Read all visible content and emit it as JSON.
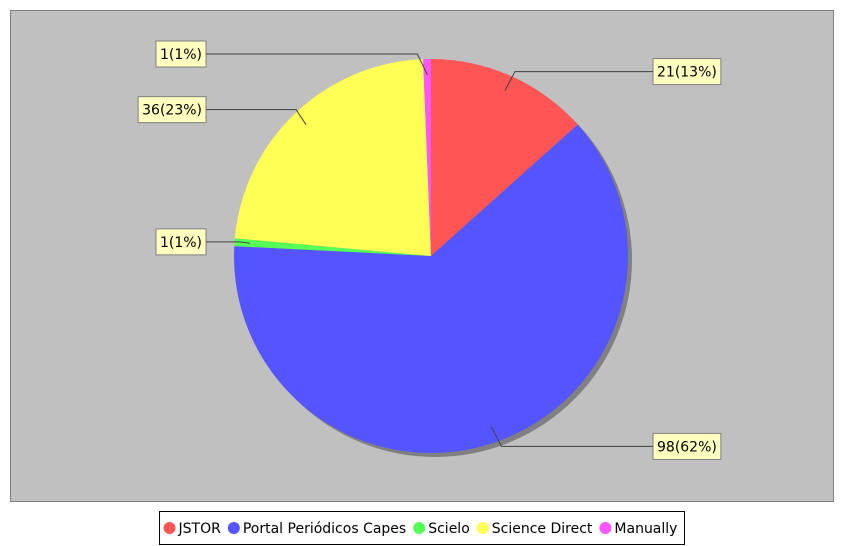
{
  "chart_data": {
    "type": "pie",
    "categories": [
      "JSTOR",
      "Portal Periódicos Capes",
      "Scielo",
      "Science Direct",
      "Manually"
    ],
    "values": [
      21,
      98,
      1,
      36,
      1
    ],
    "value_labels": [
      "21(13%)",
      "98(62%)",
      "1(1%)",
      "36(23%)",
      "1(1%)"
    ],
    "colors": [
      "#ff5555",
      "#5555ff",
      "#55ff55",
      "#ffff55",
      "#ff55ff"
    ],
    "legend": "bottom"
  }
}
